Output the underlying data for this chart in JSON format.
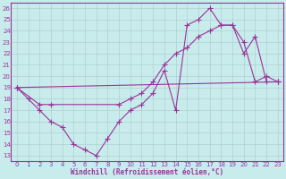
{
  "xlabel": "Windchill (Refroidissement éolien,°C)",
  "bg_color": "#c8ecec",
  "line_color": "#993399",
  "grid_color": "#b0d0d0",
  "xlim": [
    -0.5,
    23.5
  ],
  "ylim": [
    12.5,
    26.5
  ],
  "yticks": [
    13,
    14,
    15,
    16,
    17,
    18,
    19,
    20,
    21,
    22,
    23,
    24,
    25,
    26
  ],
  "xticks": [
    0,
    1,
    2,
    3,
    4,
    5,
    6,
    7,
    8,
    9,
    10,
    11,
    12,
    13,
    14,
    15,
    16,
    17,
    18,
    19,
    20,
    21,
    22,
    23
  ],
  "line1_x": [
    0,
    1,
    2,
    3,
    4,
    5,
    6,
    7,
    8,
    9,
    10,
    11,
    12,
    13,
    14,
    15,
    16,
    17,
    18,
    19,
    20,
    21,
    22,
    23
  ],
  "line1_y": [
    19.0,
    18.0,
    17.0,
    16.0,
    15.5,
    14.0,
    13.5,
    13.0,
    14.5,
    16.0,
    17.0,
    17.5,
    18.5,
    20.5,
    17.0,
    24.5,
    25.0,
    26.0,
    24.5,
    24.5,
    22.0,
    23.5,
    19.5,
    19.5
  ],
  "line2_x": [
    0,
    2,
    3,
    9,
    10,
    11,
    12,
    13,
    14,
    15,
    16,
    17,
    18,
    19,
    20,
    21,
    22,
    23
  ],
  "line2_y": [
    19.0,
    17.5,
    17.5,
    17.5,
    18.0,
    18.5,
    19.5,
    21.0,
    22.0,
    22.5,
    23.5,
    24.0,
    24.5,
    24.5,
    23.0,
    19.5,
    20.0,
    19.5
  ],
  "line3_x": [
    0,
    23
  ],
  "line3_y": [
    19.0,
    19.5
  ]
}
